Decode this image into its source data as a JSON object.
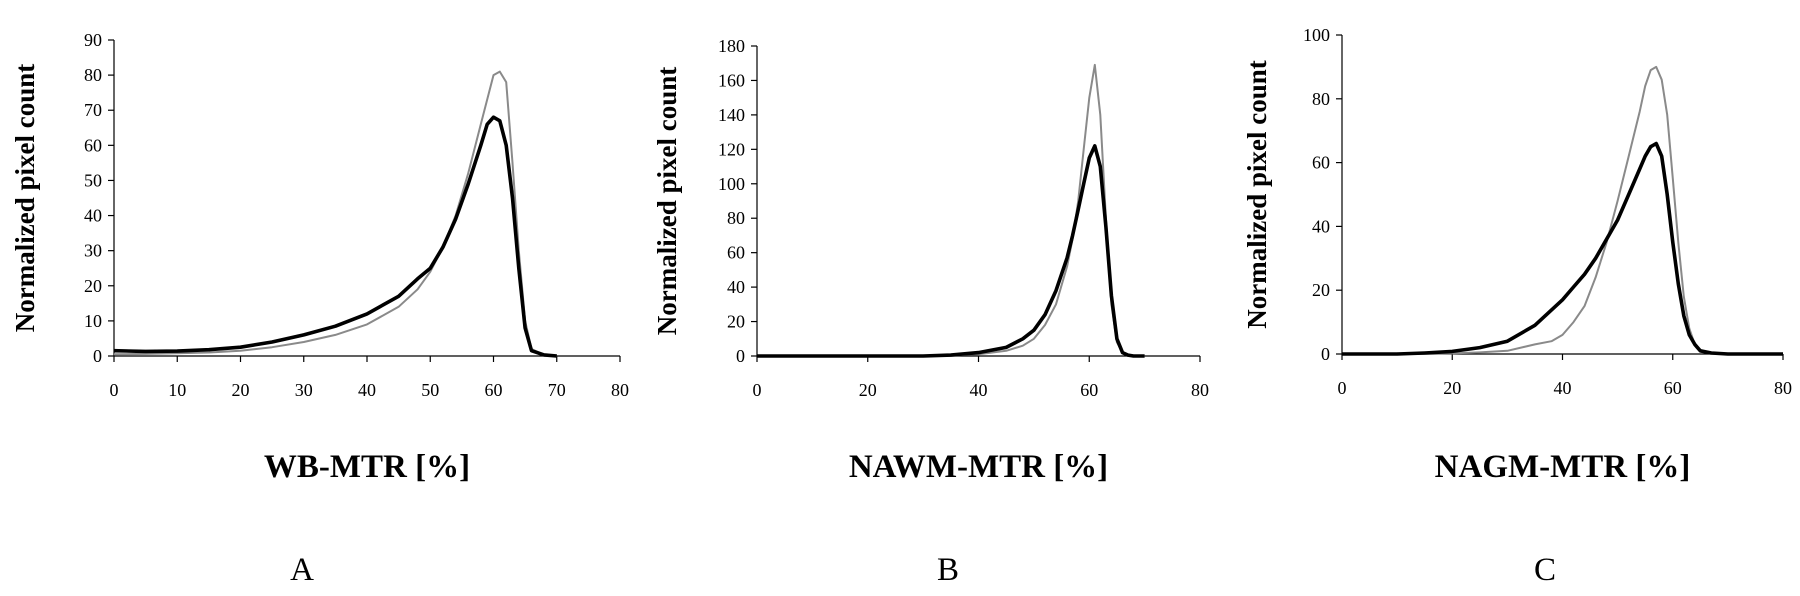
{
  "chart_data": [
    {
      "type": "line",
      "panel_label": "A",
      "xlabel": "WB-MTR [%]",
      "ylabel": "Normalized pixel count",
      "xlim": [
        0,
        80
      ],
      "ylim": [
        0,
        90
      ],
      "xticks": [
        0,
        10,
        20,
        30,
        40,
        50,
        60,
        70,
        80
      ],
      "yticks": [
        0,
        10,
        20,
        30,
        40,
        50,
        60,
        70,
        80,
        90
      ],
      "grid": false,
      "legend": "none",
      "series": [
        {
          "style": "thin-gray",
          "color": "#8a8a8a",
          "x": [
            0,
            5,
            10,
            15,
            20,
            25,
            30,
            35,
            40,
            45,
            48,
            50,
            52,
            54,
            56,
            58,
            60,
            61,
            62,
            63,
            64,
            65,
            66,
            68,
            70
          ],
          "y": [
            0.5,
            0.6,
            0.8,
            1,
            1.5,
            2.5,
            4,
            6,
            9,
            14,
            19,
            24,
            31,
            40,
            52,
            66,
            80,
            81,
            78,
            55,
            30,
            10,
            2,
            0.3,
            0
          ]
        },
        {
          "style": "thick-black",
          "color": "#000000",
          "x": [
            0,
            5,
            10,
            15,
            20,
            25,
            30,
            35,
            40,
            45,
            48,
            50,
            52,
            54,
            56,
            58,
            59,
            60,
            61,
            62,
            63,
            64,
            65,
            66,
            68,
            70
          ],
          "y": [
            1.5,
            1.3,
            1.4,
            1.8,
            2.5,
            4,
            6,
            8.5,
            12,
            17,
            22,
            25,
            31,
            39,
            49,
            60,
            66,
            68,
            67,
            60,
            45,
            25,
            8,
            1.5,
            0.3,
            0
          ]
        }
      ]
    },
    {
      "type": "line",
      "panel_label": "B",
      "xlabel": "NAWM-MTR [%]",
      "ylabel": "Normalized pixel count",
      "xlim": [
        0,
        80
      ],
      "ylim": [
        0,
        180
      ],
      "xticks": [
        0,
        20,
        40,
        60,
        80
      ],
      "yticks": [
        0,
        20,
        40,
        60,
        80,
        100,
        120,
        140,
        160,
        180
      ],
      "grid": false,
      "legend": "none",
      "series": [
        {
          "style": "thin-gray",
          "color": "#8a8a8a",
          "x": [
            0,
            20,
            30,
            35,
            40,
            45,
            48,
            50,
            52,
            54,
            56,
            57,
            58,
            59,
            60,
            61,
            62,
            63,
            64,
            65,
            66,
            67,
            68,
            70
          ],
          "y": [
            0,
            0,
            0,
            0.3,
            1,
            3,
            6,
            10,
            18,
            30,
            52,
            68,
            90,
            120,
            150,
            169,
            140,
            80,
            30,
            8,
            2,
            0.5,
            0,
            0
          ]
        },
        {
          "style": "thick-black",
          "color": "#000000",
          "x": [
            0,
            20,
            30,
            35,
            40,
            45,
            48,
            50,
            52,
            54,
            56,
            57,
            58,
            59,
            60,
            61,
            62,
            63,
            64,
            65,
            66,
            67,
            68,
            70
          ],
          "y": [
            0,
            0,
            0,
            0.5,
            2,
            5,
            10,
            15,
            24,
            38,
            57,
            70,
            85,
            100,
            115,
            122,
            110,
            75,
            35,
            10,
            2,
            0.5,
            0,
            0
          ]
        }
      ]
    },
    {
      "type": "line",
      "panel_label": "C",
      "xlabel": "NAGM-MTR [%]",
      "ylabel": "Normalized pixel count",
      "xlim": [
        0,
        80
      ],
      "ylim": [
        0,
        100
      ],
      "xticks": [
        0,
        20,
        40,
        60,
        80
      ],
      "yticks": [
        0,
        20,
        40,
        60,
        80,
        100
      ],
      "grid": false,
      "legend": "none",
      "series": [
        {
          "style": "thin-gray",
          "color": "#8a8a8a",
          "x": [
            0,
            10,
            20,
            25,
            30,
            35,
            38,
            40,
            42,
            44,
            46,
            48,
            50,
            52,
            54,
            55,
            56,
            57,
            58,
            59,
            60,
            61,
            62,
            63,
            64,
            65,
            67,
            70,
            80
          ],
          "y": [
            0,
            0,
            0.2,
            0.5,
            1,
            3,
            4,
            6,
            10,
            15,
            24,
            35,
            48,
            62,
            76,
            84,
            89,
            90,
            86,
            75,
            55,
            35,
            18,
            8,
            3,
            1,
            0.3,
            0,
            0
          ]
        },
        {
          "style": "thick-black",
          "color": "#000000",
          "x": [
            0,
            10,
            15,
            20,
            25,
            30,
            35,
            40,
            42,
            44,
            46,
            48,
            50,
            52,
            54,
            55,
            56,
            57,
            58,
            59,
            60,
            61,
            62,
            63,
            64,
            65,
            67,
            70,
            80
          ],
          "y": [
            0,
            0,
            0.3,
            0.8,
            2,
            4,
            9,
            17,
            21,
            25,
            30,
            36,
            42,
            50,
            58,
            62,
            65,
            66,
            62,
            50,
            35,
            22,
            12,
            6,
            3,
            1,
            0.3,
            0,
            0
          ]
        }
      ]
    }
  ]
}
